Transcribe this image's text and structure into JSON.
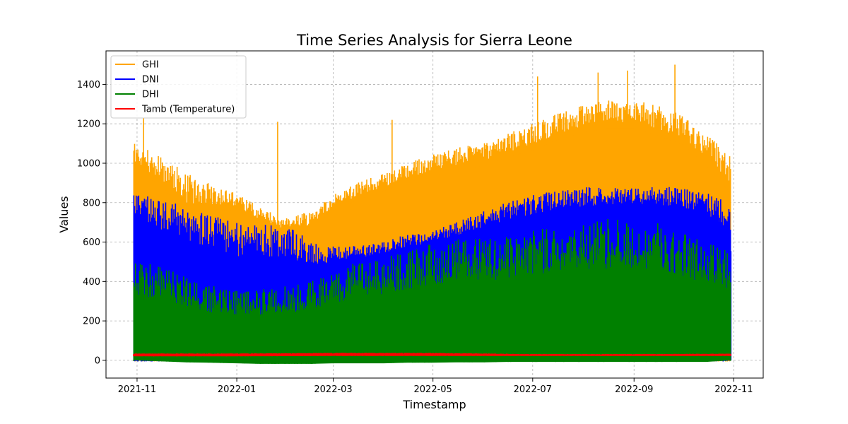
{
  "chart_data": {
    "type": "line",
    "title": "Time Series Analysis for Sierra Leone",
    "xlabel": "Timestamp",
    "ylabel": "Values",
    "x_ticks": [
      "2021-11",
      "2022-01",
      "2022-03",
      "2022-05",
      "2022-07",
      "2022-09",
      "2022-11"
    ],
    "y_ticks": [
      0,
      200,
      400,
      600,
      800,
      1000,
      1200,
      1400
    ],
    "xlim": [
      "2021-10-13",
      "2022-11-19"
    ],
    "ylim": [
      -90,
      1570
    ],
    "grid": true,
    "legend_position": "top-left",
    "x_range": [
      "2021-10-30",
      "2022-10-30"
    ],
    "series": [
      {
        "name": "GHI",
        "color": "#ffa500",
        "envelope": {
          "x": [
            "2021-10-30",
            "2021-11-15",
            "2021-12-01",
            "2021-12-15",
            "2022-01-01",
            "2022-01-15",
            "2022-02-01",
            "2022-02-15",
            "2022-03-01",
            "2022-03-15",
            "2022-04-01",
            "2022-04-15",
            "2022-05-01",
            "2022-05-15",
            "2022-06-01",
            "2022-06-15",
            "2022-07-01",
            "2022-07-15",
            "2022-08-01",
            "2022-08-15",
            "2022-09-01",
            "2022-09-15",
            "2022-10-01",
            "2022-10-15",
            "2022-10-30"
          ],
          "upper": [
            1100,
            1050,
            950,
            900,
            850,
            780,
            720,
            760,
            850,
            900,
            950,
            1000,
            1050,
            1080,
            1100,
            1150,
            1200,
            1250,
            1300,
            1320,
            1320,
            1300,
            1250,
            1150,
            1050
          ],
          "lower": [
            800,
            700,
            500,
            600,
            650,
            600,
            550,
            550,
            650,
            700,
            750,
            780,
            800,
            820,
            850,
            880,
            900,
            950,
            980,
            1000,
            1000,
            950,
            900,
            800,
            600
          ],
          "peaks": [
            {
              "x": "2021-11-05",
              "y": 1230
            },
            {
              "x": "2022-01-26",
              "y": 1210
            },
            {
              "x": "2022-04-06",
              "y": 1220
            },
            {
              "x": "2022-07-04",
              "y": 1440
            },
            {
              "x": "2022-08-10",
              "y": 1460
            },
            {
              "x": "2022-08-28",
              "y": 1470
            },
            {
              "x": "2022-09-26",
              "y": 1500
            }
          ]
        }
      },
      {
        "name": "DNI",
        "color": "#0000ff",
        "envelope": {
          "x": [
            "2021-10-30",
            "2021-11-15",
            "2021-12-01",
            "2021-12-15",
            "2022-01-01",
            "2022-01-15",
            "2022-02-01",
            "2022-02-15",
            "2022-03-01",
            "2022-03-15",
            "2022-04-01",
            "2022-04-15",
            "2022-05-01",
            "2022-05-15",
            "2022-06-01",
            "2022-06-15",
            "2022-07-01",
            "2022-07-15",
            "2022-08-01",
            "2022-08-15",
            "2022-09-01",
            "2022-09-15",
            "2022-10-01",
            "2022-10-15",
            "2022-10-30"
          ],
          "upper": [
            840,
            830,
            780,
            740,
            700,
            700,
            700,
            600,
            580,
            580,
            600,
            640,
            660,
            700,
            760,
            800,
            840,
            860,
            880,
            880,
            880,
            880,
            880,
            850,
            800
          ],
          "lower": [
            500,
            350,
            300,
            250,
            200,
            200,
            200,
            250,
            350,
            400,
            420,
            450,
            480,
            500,
            520,
            550,
            560,
            580,
            600,
            620,
            620,
            600,
            580,
            550,
            400
          ],
          "peaks": []
        }
      },
      {
        "name": "DHI",
        "color": "#008000",
        "envelope": {
          "x": [
            "2021-10-30",
            "2021-11-15",
            "2021-12-01",
            "2021-12-15",
            "2022-01-01",
            "2022-01-15",
            "2022-02-01",
            "2022-02-15",
            "2022-03-01",
            "2022-03-15",
            "2022-04-01",
            "2022-04-15",
            "2022-05-01",
            "2022-05-15",
            "2022-06-01",
            "2022-06-15",
            "2022-07-01",
            "2022-07-15",
            "2022-08-01",
            "2022-08-15",
            "2022-09-01",
            "2022-09-15",
            "2022-10-01",
            "2022-10-15",
            "2022-10-30"
          ],
          "upper": [
            500,
            480,
            420,
            380,
            360,
            360,
            380,
            400,
            450,
            500,
            520,
            560,
            600,
            620,
            620,
            640,
            660,
            680,
            700,
            720,
            720,
            700,
            650,
            600,
            560
          ],
          "lower": [
            0,
            -5,
            -10,
            -12,
            -15,
            -18,
            -18,
            -18,
            -15,
            -15,
            -15,
            -12,
            -12,
            -10,
            -10,
            -8,
            -8,
            -8,
            -8,
            -8,
            -8,
            -8,
            -8,
            -8,
            0
          ],
          "peaks": []
        }
      },
      {
        "name": "Tamb (Temperature)",
        "color": "#ff0000",
        "envelope": {
          "x": [
            "2021-10-30",
            "2022-01-01",
            "2022-03-01",
            "2022-05-01",
            "2022-07-01",
            "2022-09-01",
            "2022-10-30"
          ],
          "upper": [
            35,
            35,
            38,
            38,
            32,
            32,
            34
          ],
          "lower": [
            20,
            20,
            22,
            22,
            22,
            22,
            22
          ],
          "peaks": []
        }
      }
    ]
  }
}
